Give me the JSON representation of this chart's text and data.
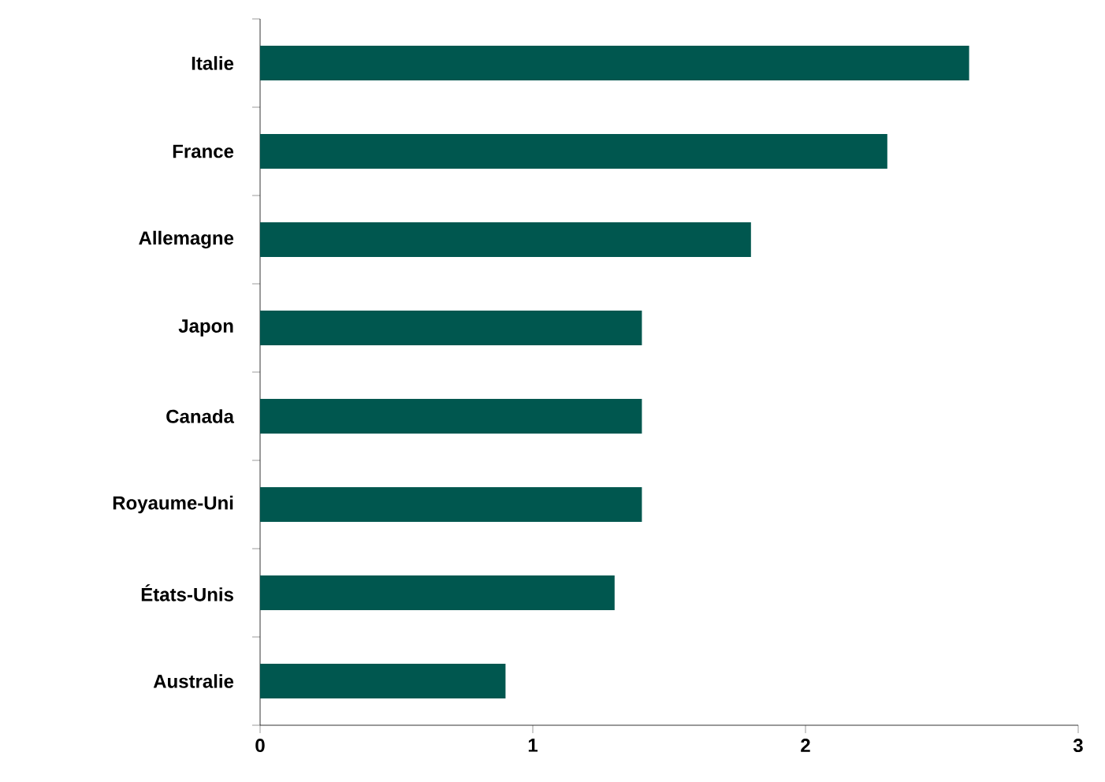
{
  "chart_data": {
    "type": "bar",
    "orientation": "horizontal",
    "categories": [
      "Italie",
      "France",
      "Allemagne",
      "Japon",
      "Canada",
      "Royaume-Uni",
      "États-Unis",
      "Australie"
    ],
    "values": [
      2.6,
      2.3,
      1.8,
      1.4,
      1.4,
      1.4,
      1.3,
      0.9
    ],
    "color": "#00574f",
    "xlim": [
      0,
      3
    ],
    "xticks": [
      0,
      1,
      2,
      3
    ],
    "grid": false
  }
}
